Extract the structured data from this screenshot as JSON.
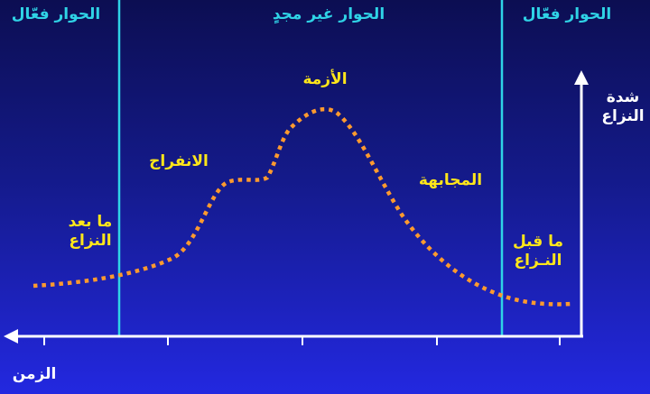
{
  "header": {
    "left_zone": "الحوار فعّال",
    "middle_zone": "الحوار غير مجدٍ",
    "right_zone": "الحوار فعّال"
  },
  "axes": {
    "y_label_line1": "شدة",
    "y_label_line2": "النزاع",
    "x_label": "الزمن"
  },
  "stages": {
    "crisis": "الأزمة",
    "breakthrough": "الانفراج",
    "confrontation": "المجابهة",
    "post_line1": "ما بعد",
    "post_line2": "النزاع",
    "pre_line1": "ما قبل",
    "pre_line2": "النـزاع"
  },
  "colors": {
    "curve": "#ff9a2e",
    "divider": "#2fd3e6",
    "zone_text": "#2fd3e6",
    "stage_text": "#ffe61a",
    "axis": "#ffffff"
  }
}
